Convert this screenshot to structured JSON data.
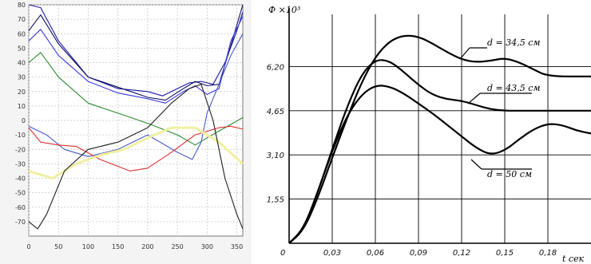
{
  "chart_data": [
    {
      "type": "line",
      "title": "",
      "xlabel": "",
      "ylabel": "",
      "xlim": [
        0,
        360
      ],
      "ylim": [
        -80,
        80
      ],
      "xticks": [
        "0",
        "50",
        "100",
        "150",
        "200",
        "250",
        "300",
        "350"
      ],
      "yticks": [
        "80",
        "70",
        "60",
        "50",
        "40",
        "30",
        "20",
        "10",
        "0",
        "-10",
        "-20",
        "-30",
        "-40",
        "-50",
        "-60",
        "-70"
      ],
      "grid": true,
      "legend": "none",
      "series": [
        {
          "color": "#1a1aa6",
          "x": [
            0,
            20,
            50,
            100,
            150,
            200,
            225,
            250,
            270,
            290,
            310,
            330,
            350,
            360
          ],
          "y": [
            82,
            78,
            55,
            30,
            22,
            20,
            17,
            22,
            26,
            27,
            25,
            40,
            62,
            75
          ]
        },
        {
          "color": "#101060",
          "x": [
            0,
            20,
            50,
            100,
            150,
            200,
            230,
            260,
            280,
            300,
            320,
            340,
            360
          ],
          "y": [
            62,
            73,
            53,
            30,
            23,
            16,
            14,
            22,
            27,
            24,
            25,
            52,
            80
          ]
        },
        {
          "color": "#3a3ae0",
          "x": [
            0,
            20,
            50,
            100,
            150,
            200,
            230,
            260,
            280,
            300,
            320,
            340,
            360
          ],
          "y": [
            55,
            63,
            45,
            27,
            19,
            15,
            12,
            20,
            24,
            18,
            22,
            55,
            72
          ]
        },
        {
          "color": "#2d8a2d",
          "x": [
            0,
            20,
            50,
            100,
            150,
            200,
            250,
            280,
            300,
            330,
            360
          ],
          "y": [
            40,
            47,
            30,
            12,
            5,
            -2,
            -10,
            -17,
            -12,
            -5,
            2
          ]
        },
        {
          "color": "#4a5ac8",
          "x": [
            0,
            30,
            60,
            100,
            150,
            200,
            250,
            275,
            290,
            300,
            320,
            340,
            360
          ],
          "y": [
            -4,
            -10,
            -20,
            -25,
            -20,
            -10,
            -22,
            -27,
            -15,
            5,
            25,
            45,
            60
          ]
        },
        {
          "color": "#e03030",
          "x": [
            0,
            20,
            50,
            80,
            120,
            170,
            200,
            240,
            280,
            320,
            340,
            360
          ],
          "y": [
            -5,
            -15,
            -17,
            -18,
            -27,
            -35,
            -33,
            -22,
            -10,
            -5,
            -4,
            -6
          ]
        },
        {
          "color": "#f0f0a0",
          "x": [
            0,
            40,
            80,
            120,
            160,
            200,
            240,
            280,
            320,
            360
          ],
          "y": [
            -35,
            -40,
            -30,
            -24,
            -20,
            -12,
            -5,
            -5,
            -15,
            -30
          ]
        },
        {
          "color": "#202020",
          "x": [
            0,
            15,
            30,
            60,
            100,
            150,
            200,
            240,
            270,
            290,
            310,
            330,
            350,
            360
          ],
          "y": [
            -70,
            -75,
            -65,
            -35,
            -20,
            -15,
            -5,
            12,
            22,
            25,
            0,
            -40,
            -65,
            -75
          ]
        }
      ]
    },
    {
      "type": "line",
      "title": "",
      "xlabel": "t сек",
      "ylabel": "Ф ×10³",
      "xlim": [
        0,
        0.21
      ],
      "ylim": [
        0,
        7.75
      ],
      "xticks": [
        "0",
        "0,03",
        "0,06",
        "0,09",
        "0,12",
        "0,15",
        "0,18"
      ],
      "yticks": [
        "1,55",
        "3,10",
        "4,65",
        "6,20"
      ],
      "origin_label": "0",
      "grid": true,
      "legend": "annotations on curves",
      "series": [
        {
          "name": "d=34,5 см",
          "x": [
            0,
            0.01,
            0.02,
            0.03,
            0.04,
            0.05,
            0.06,
            0.07,
            0.08,
            0.09,
            0.1,
            0.11,
            0.12,
            0.13,
            0.14,
            0.15,
            0.16,
            0.17,
            0.18,
            0.21
          ],
          "y": [
            0,
            0.45,
            1.6,
            3.0,
            4.35,
            5.6,
            6.55,
            7.1,
            7.3,
            7.25,
            7.0,
            6.7,
            6.45,
            6.35,
            6.4,
            6.5,
            6.35,
            6.1,
            5.85,
            5.85
          ]
        },
        {
          "name": "d=43,5 см",
          "x": [
            0,
            0.01,
            0.02,
            0.03,
            0.04,
            0.05,
            0.06,
            0.07,
            0.08,
            0.09,
            0.1,
            0.11,
            0.12,
            0.13,
            0.14,
            0.15,
            0.16,
            0.21
          ],
          "y": [
            0,
            0.5,
            1.8,
            3.3,
            4.75,
            5.9,
            6.45,
            6.4,
            6.0,
            5.55,
            5.2,
            5.05,
            5.0,
            4.85,
            4.7,
            4.65,
            4.65,
            4.65
          ]
        },
        {
          "name": "d=50 см",
          "x": [
            0,
            0.01,
            0.02,
            0.03,
            0.04,
            0.05,
            0.06,
            0.07,
            0.08,
            0.09,
            0.1,
            0.11,
            0.12,
            0.13,
            0.14,
            0.15,
            0.16,
            0.17,
            0.18,
            0.19,
            0.2,
            0.21
          ],
          "y": [
            0,
            0.5,
            1.8,
            3.25,
            4.45,
            5.2,
            5.55,
            5.5,
            5.25,
            4.9,
            4.55,
            4.15,
            3.75,
            3.35,
            3.1,
            3.25,
            3.65,
            4.0,
            4.2,
            4.15,
            3.95,
            3.85
          ]
        }
      ],
      "annotations": [
        "d = 34,5 см",
        "d = 43,5 см",
        "d = 50 см"
      ]
    }
  ]
}
